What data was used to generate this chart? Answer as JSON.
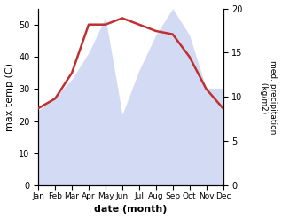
{
  "months": [
    "Jan",
    "Feb",
    "Mar",
    "Apr",
    "May",
    "Jun",
    "Jul",
    "Aug",
    "Sep",
    "Oct",
    "Nov",
    "Dec"
  ],
  "temp": [
    24,
    27,
    35,
    50,
    50,
    52,
    50,
    48,
    47,
    40,
    30,
    24
  ],
  "precip": [
    8.5,
    10,
    12,
    15,
    19,
    8,
    13,
    17,
    20,
    17,
    11,
    11
  ],
  "temp_color": "#c03030",
  "precip_fill_color": "#b0bcec",
  "precip_fill_alpha": 0.55,
  "xlabel": "date (month)",
  "ylabel_left": "max temp (C)",
  "ylabel_right": "med. precipitation\n (kg/m2)",
  "ylim_left": [
    0,
    55
  ],
  "ylim_right": [
    0,
    20
  ],
  "yticks_left": [
    0,
    10,
    20,
    30,
    40,
    50
  ],
  "yticks_right": [
    0,
    5,
    10,
    15,
    20
  ],
  "bg_color": "#ffffff",
  "temp_linewidth": 1.8,
  "figsize": [
    3.18,
    2.47
  ],
  "dpi": 100
}
